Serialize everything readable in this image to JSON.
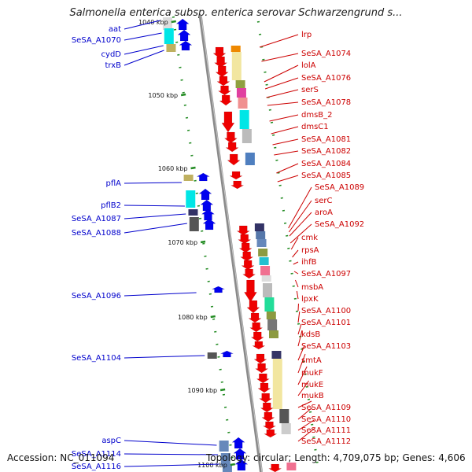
{
  "title": "Salmonella enterica subsp. enterica serovar Schwarzengrund s...",
  "footer": {
    "accession": "Accession: NC_011094",
    "stats": "Topology: circular; Length: 4,709,075 bp; Genes: 4,606"
  },
  "colors": {
    "backbone": "#8a8a8a",
    "forward_label": "#0000cc",
    "reverse_label": "#cc0000",
    "tick": "#228b22"
  },
  "scale": [
    {
      "label": "1040 kbp",
      "value": 1040
    },
    {
      "label": "1050 kbp",
      "value": 1050
    },
    {
      "label": "1060 kbp",
      "value": 1060
    },
    {
      "label": "1070 kbp",
      "value": 1070
    },
    {
      "label": "1080 kbp",
      "value": 1080
    },
    {
      "label": "1090 kbp",
      "value": 1090
    },
    {
      "label": "1100 kbp",
      "value": 1100
    }
  ],
  "forward_genes": [
    {
      "label": "aat"
    },
    {
      "label": "SeSA_A1070"
    },
    {
      "label": "cydD"
    },
    {
      "label": "trxB"
    },
    {
      "label": "pflA"
    },
    {
      "label": "pflB2"
    },
    {
      "label": "SeSA_A1087"
    },
    {
      "label": "SeSA_A1088"
    },
    {
      "label": "SeSA_A1096"
    },
    {
      "label": "SeSA_A1104"
    },
    {
      "label": "aspC"
    },
    {
      "label": "SeSA_A1114"
    },
    {
      "label": "SeSA_A1116"
    }
  ],
  "reverse_genes": [
    {
      "label": "lrp"
    },
    {
      "label": "SeSA_A1074"
    },
    {
      "label": "lolA"
    },
    {
      "label": "SeSA_A1076"
    },
    {
      "label": "serS"
    },
    {
      "label": "SeSA_A1078"
    },
    {
      "label": "dmsB_2"
    },
    {
      "label": "dmsC1"
    },
    {
      "label": "SeSA_A1081"
    },
    {
      "label": "SeSA_A1082"
    },
    {
      "label": "SeSA_A1084"
    },
    {
      "label": "SeSA_A1085"
    },
    {
      "label": "SeSA_A1089"
    },
    {
      "label": "serC"
    },
    {
      "label": "aroA"
    },
    {
      "label": "SeSA_A1092"
    },
    {
      "label": "cmk"
    },
    {
      "label": "rpsA"
    },
    {
      "label": "ihfB"
    },
    {
      "label": "SeSA_A1097"
    },
    {
      "label": "msbA"
    },
    {
      "label": "lpxK"
    },
    {
      "label": "SeSA_A1100"
    },
    {
      "label": "SeSA_A1101"
    },
    {
      "label": "kdsB"
    },
    {
      "label": "SeSA_A1103"
    },
    {
      "label": "smtA"
    },
    {
      "label": "mukF"
    },
    {
      "label": "mukE"
    },
    {
      "label": "mukB"
    },
    {
      "label": "SeSA_A1109"
    },
    {
      "label": "SeSA_A1110"
    },
    {
      "label": "SeSA_A1111"
    },
    {
      "label": "SeSA_A1112"
    }
  ]
}
